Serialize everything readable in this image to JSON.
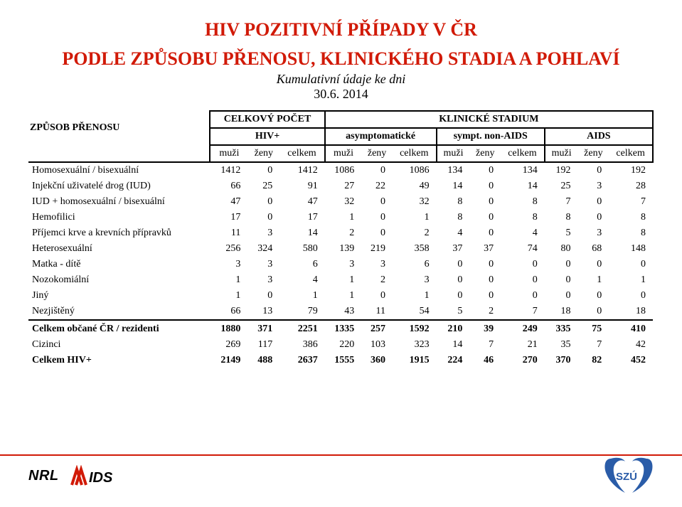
{
  "title_line1": "HIV POZITIVNÍ PŘÍPADY V ČR",
  "title_line2": "PODLE ZPŮSOBU PŘENOSU, KLINICKÉHO STADIA A POHLAVÍ",
  "subtitle": "Kumulativní údaje ke dni",
  "date": "30.6. 2014",
  "headers": {
    "zpusob": "ZPŮSOB PŘENOSU",
    "celkovy": "CELKOVÝ POČET",
    "klinicke": "KLINICKÉ STADIUM",
    "hiv": "HIV+",
    "asymp": "asymptomatické",
    "sympt": "sympt. non-AIDS",
    "aids": "AIDS",
    "muzi": "muži",
    "zeny": "ženy",
    "celkem": "celkem"
  },
  "rows": [
    {
      "label": "Homosexuální / bisexuální",
      "v": [
        1412,
        0,
        1412,
        1086,
        0,
        1086,
        134,
        0,
        134,
        192,
        0,
        192
      ],
      "bold": false
    },
    {
      "label": "Injekční uživatelé drog  (IUD)",
      "v": [
        66,
        25,
        91,
        27,
        22,
        49,
        14,
        0,
        14,
        25,
        3,
        28
      ],
      "bold": false
    },
    {
      "label": "IUD + homosexuální / bisexuální",
      "v": [
        47,
        0,
        47,
        32,
        0,
        32,
        8,
        0,
        8,
        7,
        0,
        7
      ],
      "bold": false
    },
    {
      "label": "Hemofilici",
      "v": [
        17,
        0,
        17,
        1,
        0,
        1,
        8,
        0,
        8,
        8,
        0,
        8
      ],
      "bold": false
    },
    {
      "label": "Příjemci krve a krevních přípravků",
      "v": [
        11,
        3,
        14,
        2,
        0,
        2,
        4,
        0,
        4,
        5,
        3,
        8
      ],
      "bold": false
    },
    {
      "label": "Heterosexuální",
      "v": [
        256,
        324,
        580,
        139,
        219,
        358,
        37,
        37,
        74,
        80,
        68,
        148
      ],
      "bold": false
    },
    {
      "label": "Matka - dítě",
      "v": [
        3,
        3,
        6,
        3,
        3,
        6,
        0,
        0,
        0,
        0,
        0,
        0
      ],
      "bold": false
    },
    {
      "label": "Nozokomiální",
      "v": [
        1,
        3,
        4,
        1,
        2,
        3,
        0,
        0,
        0,
        0,
        1,
        1
      ],
      "bold": false
    },
    {
      "label": "Jiný",
      "v": [
        1,
        0,
        1,
        1,
        0,
        1,
        0,
        0,
        0,
        0,
        0,
        0
      ],
      "bold": false
    },
    {
      "label": "Nezjištěný",
      "v": [
        66,
        13,
        79,
        43,
        11,
        54,
        5,
        2,
        7,
        18,
        0,
        18
      ],
      "bold": false
    },
    {
      "label": "Celkem občané ČR / rezidenti",
      "v": [
        1880,
        371,
        2251,
        1335,
        257,
        1592,
        210,
        39,
        249,
        335,
        75,
        410
      ],
      "bold": true,
      "topline": true
    },
    {
      "label": "Cizinci",
      "v": [
        269,
        117,
        386,
        220,
        103,
        323,
        14,
        7,
        21,
        35,
        7,
        42
      ],
      "bold": false
    },
    {
      "label": "Celkem HIV+",
      "v": [
        2149,
        488,
        2637,
        1555,
        360,
        1915,
        224,
        46,
        270,
        370,
        82,
        452
      ],
      "bold": true
    }
  ],
  "footer": {
    "nrl": "NRL"
  },
  "colors": {
    "title": "#d11a07",
    "border": "#000000",
    "line": "#d11a07"
  }
}
